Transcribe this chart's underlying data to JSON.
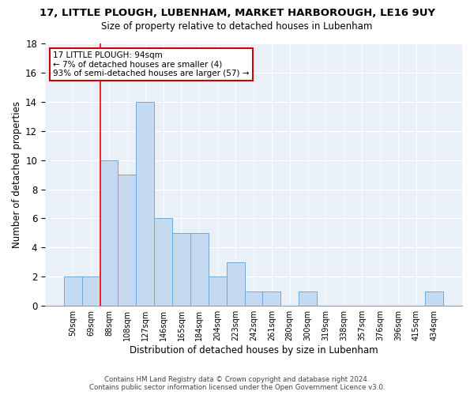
{
  "title": "17, LITTLE PLOUGH, LUBENHAM, MARKET HARBOROUGH, LE16 9UY",
  "subtitle": "Size of property relative to detached houses in Lubenham",
  "xlabel": "Distribution of detached houses by size in Lubenham",
  "ylabel": "Number of detached properties",
  "bar_labels": [
    "50sqm",
    "69sqm",
    "88sqm",
    "108sqm",
    "127sqm",
    "146sqm",
    "165sqm",
    "184sqm",
    "204sqm",
    "223sqm",
    "242sqm",
    "261sqm",
    "280sqm",
    "300sqm",
    "319sqm",
    "338sqm",
    "357sqm",
    "376sqm",
    "396sqm",
    "415sqm",
    "434sqm"
  ],
  "bar_values": [
    2,
    2,
    10,
    9,
    14,
    6,
    5,
    5,
    2,
    3,
    1,
    1,
    0,
    1,
    0,
    0,
    0,
    0,
    0,
    0,
    1
  ],
  "bar_color": "#c5d9f0",
  "bar_edge_color": "#6fa8d8",
  "red_line_x": 1.5,
  "annotation_title": "17 LITTLE PLOUGH: 94sqm",
  "annotation_line1": "← 7% of detached houses are smaller (4)",
  "annotation_line2": "93% of semi-detached houses are larger (57) →",
  "annotation_box_color": "#ffffff",
  "annotation_box_edge": "#cc0000",
  "ylim": [
    0,
    18
  ],
  "yticks": [
    0,
    2,
    4,
    6,
    8,
    10,
    12,
    14,
    16,
    18
  ],
  "footer1": "Contains HM Land Registry data © Crown copyright and database right 2024.",
  "footer2": "Contains public sector information licensed under the Open Government Licence v3.0.",
  "plot_bg_color": "#eaf0f8"
}
